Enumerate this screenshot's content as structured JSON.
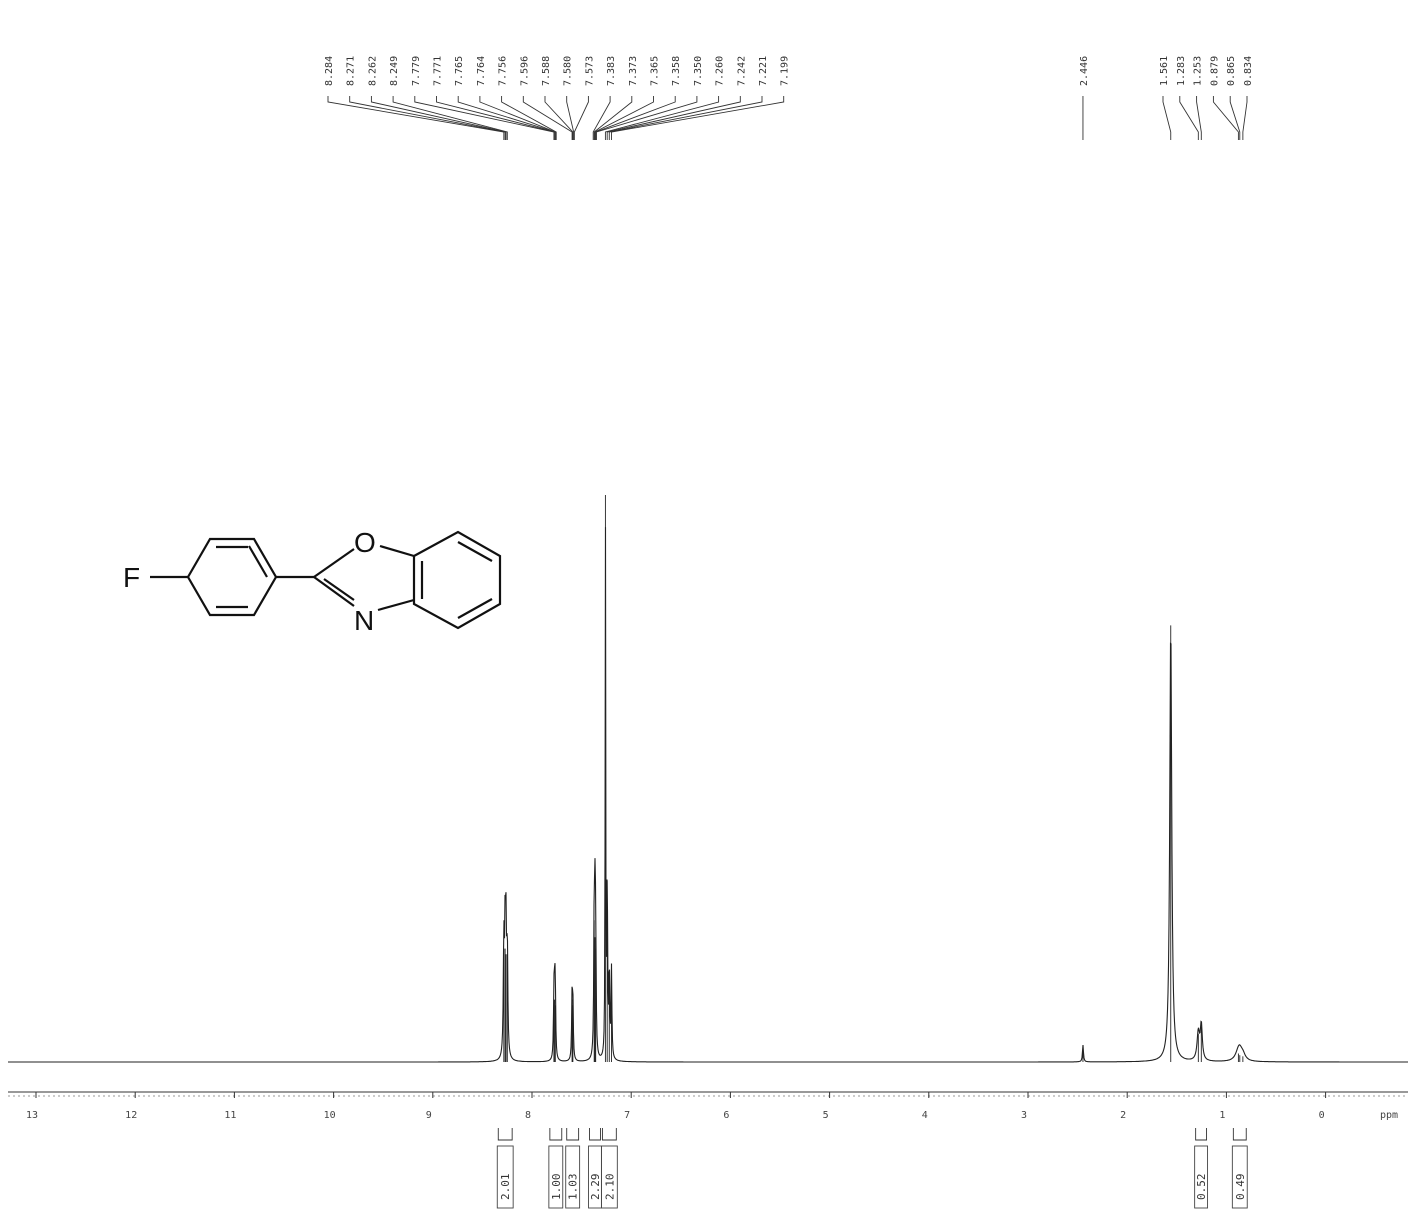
{
  "chart_data": {
    "type": "line",
    "title": "",
    "xlabel": "ppm",
    "ylabel": "",
    "xlim": [
      13.2,
      -0.7
    ],
    "x_reversed": true,
    "x_ticks": [
      13,
      12,
      11,
      10,
      9,
      8,
      7,
      6,
      5,
      4,
      3,
      2,
      1,
      0
    ],
    "grid": false,
    "peak_labels": [
      "8.284",
      "8.271",
      "8.262",
      "8.249",
      "7.779",
      "7.771",
      "7.765",
      "7.764",
      "7.756",
      "7.596",
      "7.588",
      "7.580",
      "7.573",
      "7.383",
      "7.373",
      "7.365",
      "7.358",
      "7.350",
      "7.260",
      "7.242",
      "7.221",
      "7.199",
      "2.446",
      "1.561",
      "1.283",
      "1.253",
      "0.879",
      "0.865",
      "0.834"
    ],
    "peaks": [
      {
        "ppm": 8.284,
        "height": 0.2,
        "width": 0.006
      },
      {
        "ppm": 8.271,
        "height": 0.2,
        "width": 0.006
      },
      {
        "ppm": 8.262,
        "height": 0.19,
        "width": 0.006
      },
      {
        "ppm": 8.249,
        "height": 0.19,
        "width": 0.006
      },
      {
        "ppm": 7.779,
        "height": 0.11,
        "width": 0.005
      },
      {
        "ppm": 7.771,
        "height": 0.11,
        "width": 0.005
      },
      {
        "ppm": 7.765,
        "height": 0.1,
        "width": 0.005
      },
      {
        "ppm": 7.596,
        "height": 0.11,
        "width": 0.005
      },
      {
        "ppm": 7.588,
        "height": 0.1,
        "width": 0.005
      },
      {
        "ppm": 7.373,
        "height": 0.25,
        "width": 0.005
      },
      {
        "ppm": 7.365,
        "height": 0.22,
        "width": 0.005
      },
      {
        "ppm": 7.358,
        "height": 0.2,
        "width": 0.005
      },
      {
        "ppm": 7.26,
        "height": 1.0,
        "width": 0.003
      },
      {
        "ppm": 7.242,
        "height": 0.32,
        "width": 0.005
      },
      {
        "ppm": 7.221,
        "height": 0.16,
        "width": 0.005
      },
      {
        "ppm": 7.199,
        "height": 0.16,
        "width": 0.005
      },
      {
        "ppm": 2.446,
        "height": 0.03,
        "width": 0.006
      },
      {
        "ppm": 1.561,
        "height": 0.77,
        "width": 0.012
      },
      {
        "ppm": 1.283,
        "height": 0.05,
        "width": 0.015
      },
      {
        "ppm": 1.253,
        "height": 0.062,
        "width": 0.012
      },
      {
        "ppm": 0.879,
        "height": 0.015,
        "width": 0.035
      },
      {
        "ppm": 0.865,
        "height": 0.012,
        "width": 0.03
      },
      {
        "ppm": 0.834,
        "height": 0.01,
        "width": 0.03
      }
    ],
    "integrals": [
      {
        "label": "2.01",
        "from": 8.34,
        "to": 8.2
      },
      {
        "label": "1.00",
        "from": 7.82,
        "to": 7.7
      },
      {
        "label": "1.03",
        "from": 7.65,
        "to": 7.53
      },
      {
        "label": "2.29",
        "from": 7.42,
        "to": 7.31
      },
      {
        "label": "2.10",
        "from": 7.29,
        "to": 7.15
      },
      {
        "label": "0.52",
        "from": 1.31,
        "to": 1.2
      },
      {
        "label": "0.49",
        "from": 0.93,
        "to": 0.8
      }
    ],
    "structure_atoms": {
      "F": "F",
      "O": "O",
      "N": "N"
    }
  }
}
